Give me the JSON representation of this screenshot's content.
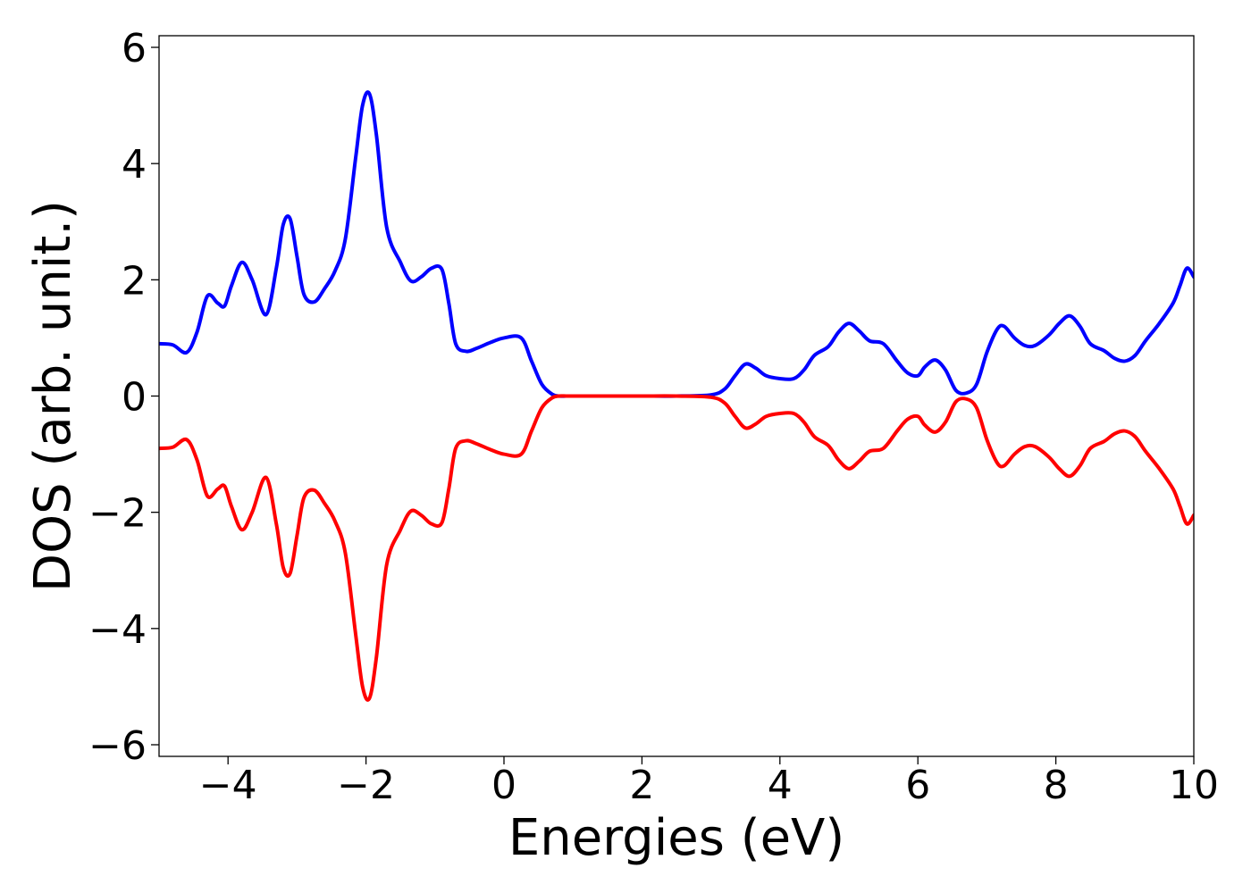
{
  "chart_data": {
    "type": "line",
    "title": "",
    "xlabel": "Energies (eV)",
    "ylabel": "DOS (arb. unit.)",
    "xlim": [
      -5,
      10
    ],
    "ylim": [
      -6.2,
      6.2
    ],
    "xticks": [
      -4,
      -2,
      0,
      2,
      4,
      6,
      8,
      10
    ],
    "yticks": [
      -6,
      -4,
      -2,
      0,
      2,
      4,
      6
    ],
    "xtick_labels": [
      "−4",
      "−2",
      "0",
      "2",
      "4",
      "6",
      "8",
      "10"
    ],
    "ytick_labels": [
      "−6",
      "−4",
      "−2",
      "0",
      "2",
      "4",
      "6"
    ],
    "grid": false,
    "legend": "none",
    "series": [
      {
        "color": "#0000ff",
        "x": [
          -5.0,
          -4.8,
          -4.6,
          -4.45,
          -4.3,
          -4.15,
          -4.05,
          -3.95,
          -3.8,
          -3.65,
          -3.45,
          -3.3,
          -3.2,
          -3.1,
          -3.0,
          -2.9,
          -2.75,
          -2.6,
          -2.45,
          -2.3,
          -2.15,
          -2.05,
          -1.95,
          -1.85,
          -1.7,
          -1.5,
          -1.35,
          -1.2,
          -1.05,
          -0.9,
          -0.8,
          -0.7,
          -0.55,
          -0.4,
          -0.2,
          0.0,
          0.25,
          0.4,
          0.55,
          0.7,
          0.8,
          0.9,
          1.0,
          1.5,
          2.0,
          2.5,
          3.0,
          3.2,
          3.35,
          3.5,
          3.65,
          3.8,
          4.0,
          4.2,
          4.35,
          4.5,
          4.7,
          4.85,
          5.0,
          5.15,
          5.3,
          5.5,
          5.7,
          5.85,
          6.0,
          6.1,
          6.25,
          6.4,
          6.55,
          6.7,
          6.85,
          7.0,
          7.15,
          7.25,
          7.4,
          7.55,
          7.7,
          7.9,
          8.05,
          8.2,
          8.35,
          8.5,
          8.7,
          8.85,
          9.0,
          9.15,
          9.3,
          9.5,
          9.7,
          9.8,
          9.9,
          10.0
        ],
        "y": [
          0.9,
          0.88,
          0.75,
          1.1,
          1.72,
          1.6,
          1.55,
          1.9,
          2.3,
          2.0,
          1.4,
          2.2,
          2.95,
          3.05,
          2.4,
          1.75,
          1.62,
          1.85,
          2.15,
          2.7,
          4.1,
          5.0,
          5.2,
          4.5,
          2.9,
          2.3,
          1.98,
          2.05,
          2.2,
          2.18,
          1.6,
          0.9,
          0.77,
          0.82,
          0.92,
          1.0,
          1.0,
          0.6,
          0.2,
          0.03,
          0.0,
          0.0,
          0.0,
          0.0,
          0.0,
          0.0,
          0.02,
          0.12,
          0.35,
          0.55,
          0.48,
          0.35,
          0.3,
          0.3,
          0.45,
          0.7,
          0.85,
          1.1,
          1.25,
          1.12,
          0.95,
          0.9,
          0.6,
          0.4,
          0.35,
          0.5,
          0.62,
          0.45,
          0.1,
          0.05,
          0.2,
          0.75,
          1.15,
          1.2,
          1.0,
          0.87,
          0.87,
          1.05,
          1.25,
          1.38,
          1.2,
          0.9,
          0.78,
          0.65,
          0.6,
          0.7,
          0.95,
          1.25,
          1.6,
          1.9,
          2.2,
          2.05
        ]
      },
      {
        "color": "#ff0000",
        "x": [
          -5.0,
          -4.8,
          -4.6,
          -4.45,
          -4.3,
          -4.15,
          -4.05,
          -3.95,
          -3.8,
          -3.65,
          -3.45,
          -3.3,
          -3.2,
          -3.1,
          -3.0,
          -2.9,
          -2.75,
          -2.6,
          -2.45,
          -2.3,
          -2.15,
          -2.05,
          -1.95,
          -1.85,
          -1.7,
          -1.5,
          -1.35,
          -1.2,
          -1.05,
          -0.9,
          -0.8,
          -0.7,
          -0.55,
          -0.4,
          -0.2,
          0.0,
          0.25,
          0.4,
          0.55,
          0.7,
          0.8,
          0.9,
          1.0,
          1.5,
          2.0,
          2.5,
          3.0,
          3.2,
          3.35,
          3.5,
          3.65,
          3.8,
          4.0,
          4.2,
          4.35,
          4.5,
          4.7,
          4.85,
          5.0,
          5.15,
          5.3,
          5.5,
          5.7,
          5.85,
          6.0,
          6.1,
          6.25,
          6.4,
          6.55,
          6.7,
          6.85,
          7.0,
          7.15,
          7.25,
          7.4,
          7.55,
          7.7,
          7.9,
          8.05,
          8.2,
          8.35,
          8.5,
          8.7,
          8.85,
          9.0,
          9.15,
          9.3,
          9.5,
          9.7,
          9.8,
          9.9,
          10.0
        ],
        "y": [
          -0.9,
          -0.88,
          -0.75,
          -1.1,
          -1.72,
          -1.6,
          -1.55,
          -1.9,
          -2.3,
          -2.0,
          -1.4,
          -2.2,
          -2.95,
          -3.05,
          -2.4,
          -1.75,
          -1.62,
          -1.85,
          -2.15,
          -2.7,
          -4.1,
          -5.0,
          -5.2,
          -4.5,
          -2.9,
          -2.3,
          -1.98,
          -2.05,
          -2.2,
          -2.18,
          -1.6,
          -0.9,
          -0.77,
          -0.82,
          -0.92,
          -1.0,
          -1.0,
          -0.6,
          -0.2,
          -0.03,
          0.0,
          0.0,
          0.0,
          0.0,
          0.0,
          0.0,
          -0.02,
          -0.12,
          -0.35,
          -0.55,
          -0.48,
          -0.35,
          -0.3,
          -0.3,
          -0.45,
          -0.7,
          -0.85,
          -1.1,
          -1.25,
          -1.12,
          -0.95,
          -0.9,
          -0.6,
          -0.4,
          -0.35,
          -0.5,
          -0.62,
          -0.45,
          -0.1,
          -0.05,
          -0.2,
          -0.75,
          -1.15,
          -1.2,
          -1.0,
          -0.87,
          -0.87,
          -1.05,
          -1.25,
          -1.38,
          -1.2,
          -0.9,
          -0.78,
          -0.65,
          -0.6,
          -0.7,
          -0.95,
          -1.25,
          -1.6,
          -1.9,
          -2.2,
          -2.05
        ]
      }
    ]
  }
}
